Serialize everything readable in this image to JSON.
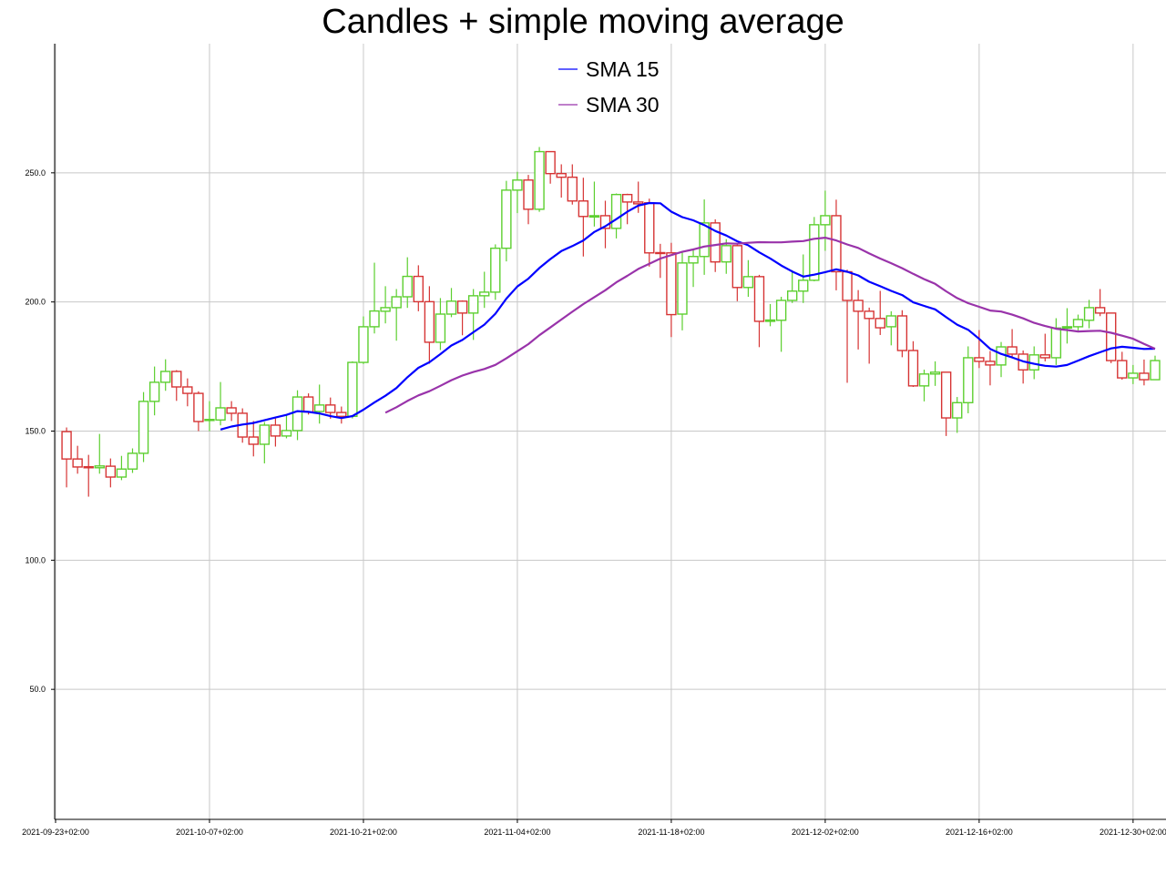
{
  "chart_data": {
    "type": "candlestick",
    "title": "Candles + simple moving average",
    "xlabel": "",
    "ylabel": "",
    "ylim": [
      0,
      300
    ],
    "xlim": [
      "2021-09-23",
      "2022-01-02"
    ],
    "grid": true,
    "legend_position": "top-center",
    "y_ticks": [
      "50.0",
      "100.0",
      "150.0",
      "200.0",
      "250.0"
    ],
    "x_ticks": [
      "2021-09-23+02:00",
      "2021-10-07+02:00",
      "2021-10-21+02:00",
      "2021-11-04+02:00",
      "2021-11-18+02:00",
      "2021-12-02+02:00",
      "2021-12-16+02:00",
      "2021-12-30+02:00"
    ],
    "colors": {
      "up": "#5ccf2f",
      "down": "#d63434",
      "grid": "#c8c8c8"
    },
    "series": [
      {
        "name": "SMA 15",
        "window": 15,
        "color": "#0000ff"
      },
      {
        "name": "SMA 30",
        "window": 30,
        "color": "#9933aa"
      }
    ],
    "candle_columns": [
      "date",
      "open",
      "high",
      "low",
      "close"
    ],
    "candles": [
      [
        "2021-09-24",
        149.8,
        151.4,
        128.2,
        139.2
      ],
      [
        "2021-09-25",
        139.2,
        144.3,
        133.5,
        136.1
      ],
      [
        "2021-09-26",
        136.2,
        140.8,
        124.6,
        135.8
      ],
      [
        "2021-09-27",
        135.8,
        148.9,
        133.5,
        136.5
      ],
      [
        "2021-09-28",
        136.4,
        139.4,
        128.2,
        132.2
      ],
      [
        "2021-09-29",
        132.2,
        140.4,
        131.0,
        135.3
      ],
      [
        "2021-09-30",
        135.3,
        143.3,
        133.8,
        141.4
      ],
      [
        "2021-10-01",
        141.4,
        165.1,
        138.0,
        161.5
      ],
      [
        "2021-10-02",
        161.5,
        175.0,
        156.1,
        168.9
      ],
      [
        "2021-10-03",
        168.9,
        177.8,
        165.6,
        173.1
      ],
      [
        "2021-10-04",
        173.1,
        173.6,
        161.7,
        167.1
      ],
      [
        "2021-10-05",
        167.1,
        170.4,
        159.6,
        164.6
      ],
      [
        "2021-10-06",
        164.6,
        165.4,
        150.0,
        153.7
      ],
      [
        "2021-10-07",
        154.1,
        161.6,
        150.0,
        154.5
      ],
      [
        "2021-10-08",
        154.3,
        169.0,
        152.2,
        159.0
      ],
      [
        "2021-10-09",
        159.0,
        161.6,
        153.9,
        156.9
      ],
      [
        "2021-10-10",
        156.9,
        158.8,
        145.5,
        147.7
      ],
      [
        "2021-10-11",
        147.7,
        153.9,
        140.2,
        144.9
      ],
      [
        "2021-10-12",
        144.9,
        153.5,
        137.5,
        152.3
      ],
      [
        "2021-10-13",
        152.3,
        154.9,
        144.0,
        148.1
      ],
      [
        "2021-10-14",
        148.1,
        156.0,
        147.2,
        150.2
      ],
      [
        "2021-10-15",
        150.2,
        165.8,
        146.5,
        163.2
      ],
      [
        "2021-10-16",
        163.2,
        164.6,
        156.4,
        157.4
      ],
      [
        "2021-10-17",
        157.6,
        168.0,
        152.9,
        160.1
      ],
      [
        "2021-10-18",
        160.1,
        163.0,
        154.8,
        157.2
      ],
      [
        "2021-10-19",
        157.2,
        159.5,
        152.9,
        155.7
      ],
      [
        "2021-10-20",
        155.7,
        177.0,
        154.9,
        176.6
      ],
      [
        "2021-10-21",
        176.6,
        194.4,
        176.0,
        190.4
      ],
      [
        "2021-10-22",
        190.4,
        215.2,
        187.8,
        196.5
      ],
      [
        "2021-10-23",
        196.4,
        206.1,
        191.7,
        197.8
      ],
      [
        "2021-10-24",
        197.8,
        205.0,
        185.0,
        202.0
      ],
      [
        "2021-10-25",
        202.0,
        217.3,
        197.7,
        209.9
      ],
      [
        "2021-10-26",
        209.9,
        214.2,
        196.4,
        200.1
      ],
      [
        "2021-10-27",
        200.1,
        206.1,
        176.1,
        184.4
      ],
      [
        "2021-10-28",
        184.4,
        201.5,
        181.4,
        195.3
      ],
      [
        "2021-10-29",
        195.3,
        205.4,
        194.1,
        200.3
      ],
      [
        "2021-10-30",
        200.3,
        200.6,
        187.1,
        195.7
      ],
      [
        "2021-10-31",
        195.7,
        205.0,
        185.3,
        202.4
      ],
      [
        "2021-11-01",
        202.4,
        211.7,
        197.7,
        203.8
      ],
      [
        "2021-11-02",
        203.8,
        222.3,
        200.8,
        220.8
      ],
      [
        "2021-11-03",
        220.8,
        246.9,
        215.7,
        243.3
      ],
      [
        "2021-11-04",
        243.3,
        250.4,
        234.4,
        247.2
      ],
      [
        "2021-11-05",
        247.2,
        249.2,
        230.1,
        235.9
      ],
      [
        "2021-11-06",
        235.9,
        260.0,
        234.9,
        258.2
      ],
      [
        "2021-11-07",
        258.2,
        258.2,
        245.8,
        249.7
      ],
      [
        "2021-11-08",
        249.7,
        253.3,
        240.4,
        248.3
      ],
      [
        "2021-11-09",
        248.3,
        253.3,
        237.7,
        239.1
      ],
      [
        "2021-11-10",
        239.1,
        248.1,
        217.6,
        233.1
      ],
      [
        "2021-11-11",
        232.9,
        246.6,
        229.2,
        233.4
      ],
      [
        "2021-11-12",
        233.4,
        239.2,
        220.8,
        228.5
      ],
      [
        "2021-11-13",
        228.5,
        242.0,
        224.6,
        241.6
      ],
      [
        "2021-11-14",
        241.6,
        241.9,
        230.1,
        238.7
      ],
      [
        "2021-11-15",
        238.7,
        246.6,
        234.5,
        238.0
      ],
      [
        "2021-11-16",
        238.4,
        240.0,
        213.7,
        219.0
      ],
      [
        "2021-11-17",
        219.1,
        222.5,
        209.3,
        218.8
      ],
      [
        "2021-11-18",
        219.0,
        222.9,
        186.4,
        195.1
      ],
      [
        "2021-11-19",
        195.3,
        219.8,
        189.0,
        215.1
      ],
      [
        "2021-11-20",
        215.1,
        220.5,
        205.8,
        217.6
      ],
      [
        "2021-11-21",
        217.6,
        239.7,
        210.5,
        230.6
      ],
      [
        "2021-11-22",
        230.6,
        232.0,
        211.6,
        215.5
      ],
      [
        "2021-11-23",
        215.5,
        224.3,
        210.9,
        221.8
      ],
      [
        "2021-11-24",
        221.8,
        222.5,
        200.3,
        205.6
      ],
      [
        "2021-11-25",
        205.6,
        216.2,
        202.0,
        209.8
      ],
      [
        "2021-11-26",
        209.8,
        210.5,
        182.5,
        192.5
      ],
      [
        "2021-11-27",
        192.5,
        199.2,
        190.6,
        193.0
      ],
      [
        "2021-11-28",
        192.9,
        202.0,
        180.7,
        200.6
      ],
      [
        "2021-11-29",
        200.6,
        212.3,
        199.6,
        204.2
      ],
      [
        "2021-11-30",
        204.2,
        218.4,
        199.6,
        208.4
      ],
      [
        "2021-12-01",
        208.4,
        232.9,
        208.0,
        229.9
      ],
      [
        "2021-12-02",
        229.9,
        243.1,
        219.8,
        233.4
      ],
      [
        "2021-12-03",
        233.4,
        239.6,
        204.5,
        211.7
      ],
      [
        "2021-12-04",
        211.7,
        212.5,
        168.7,
        200.6
      ],
      [
        "2021-12-05",
        200.6,
        204.6,
        181.6,
        196.4
      ],
      [
        "2021-12-06",
        196.4,
        197.8,
        176.1,
        193.6
      ],
      [
        "2021-12-07",
        193.6,
        204.3,
        187.2,
        190.0
      ],
      [
        "2021-12-08",
        190.4,
        196.4,
        183.2,
        194.6
      ],
      [
        "2021-12-09",
        194.6,
        196.8,
        178.6,
        181.2
      ],
      [
        "2021-12-10",
        181.2,
        184.8,
        167.1,
        167.5
      ],
      [
        "2021-12-11",
        167.5,
        173.8,
        161.5,
        172.1
      ],
      [
        "2021-12-12",
        172.1,
        177.0,
        167.5,
        172.8
      ],
      [
        "2021-12-13",
        172.8,
        172.8,
        148.1,
        155.1
      ],
      [
        "2021-12-14",
        155.1,
        163.2,
        149.3,
        161.0
      ],
      [
        "2021-12-15",
        161.0,
        182.8,
        156.9,
        178.4
      ],
      [
        "2021-12-16",
        178.4,
        189.1,
        174.4,
        177.0
      ],
      [
        "2021-12-17",
        177.0,
        181.0,
        167.7,
        175.6
      ],
      [
        "2021-12-18",
        175.6,
        184.5,
        170.9,
        182.6
      ],
      [
        "2021-12-19",
        182.6,
        189.5,
        178.4,
        179.8
      ],
      [
        "2021-12-20",
        179.8,
        181.2,
        168.4,
        173.7
      ],
      [
        "2021-12-21",
        173.7,
        182.8,
        170.1,
        179.5
      ],
      [
        "2021-12-22",
        179.5,
        187.7,
        177.0,
        178.4
      ],
      [
        "2021-12-23",
        178.4,
        193.7,
        175.6,
        189.9
      ],
      [
        "2021-12-24",
        189.9,
        197.6,
        183.9,
        190.4
      ],
      [
        "2021-12-25",
        190.4,
        195.1,
        189.0,
        193.2
      ],
      [
        "2021-12-26",
        192.9,
        200.8,
        189.8,
        197.8
      ],
      [
        "2021-12-27",
        197.8,
        205.0,
        194.5,
        195.7
      ],
      [
        "2021-12-28",
        195.7,
        195.7,
        176.3,
        177.3
      ],
      [
        "2021-12-29",
        177.3,
        180.7,
        169.9,
        170.6
      ],
      [
        "2021-12-30",
        170.6,
        175.6,
        168.2,
        172.4
      ],
      [
        "2021-12-31",
        172.4,
        177.7,
        167.7,
        169.9
      ],
      [
        "2022-01-01",
        169.9,
        179.2,
        169.9,
        177.3
      ]
    ]
  }
}
